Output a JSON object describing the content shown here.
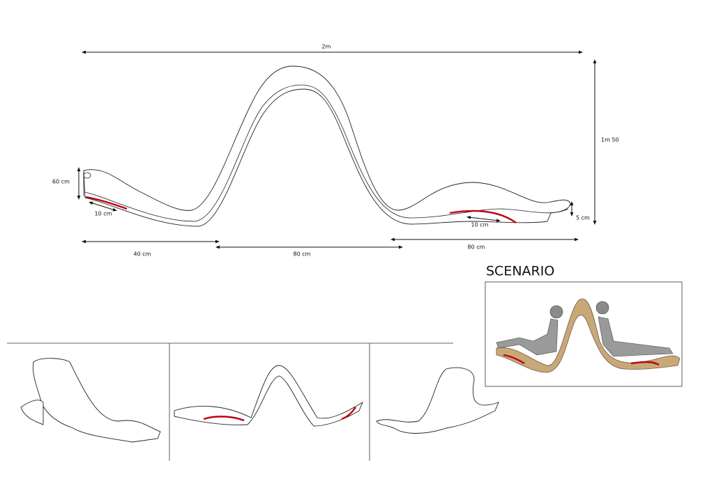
{
  "dimensions": {
    "total_length": "2m",
    "height": "1m 50",
    "left_end_height": "60 cm",
    "left_red_length": "10 cm",
    "right_red_length": "10 cm",
    "right_end_height": "5 cm",
    "left_section": "40 cm",
    "middle_section": "80 cm",
    "right_section": "80 cm"
  },
  "scenario": {
    "title": "SCENARIO"
  }
}
